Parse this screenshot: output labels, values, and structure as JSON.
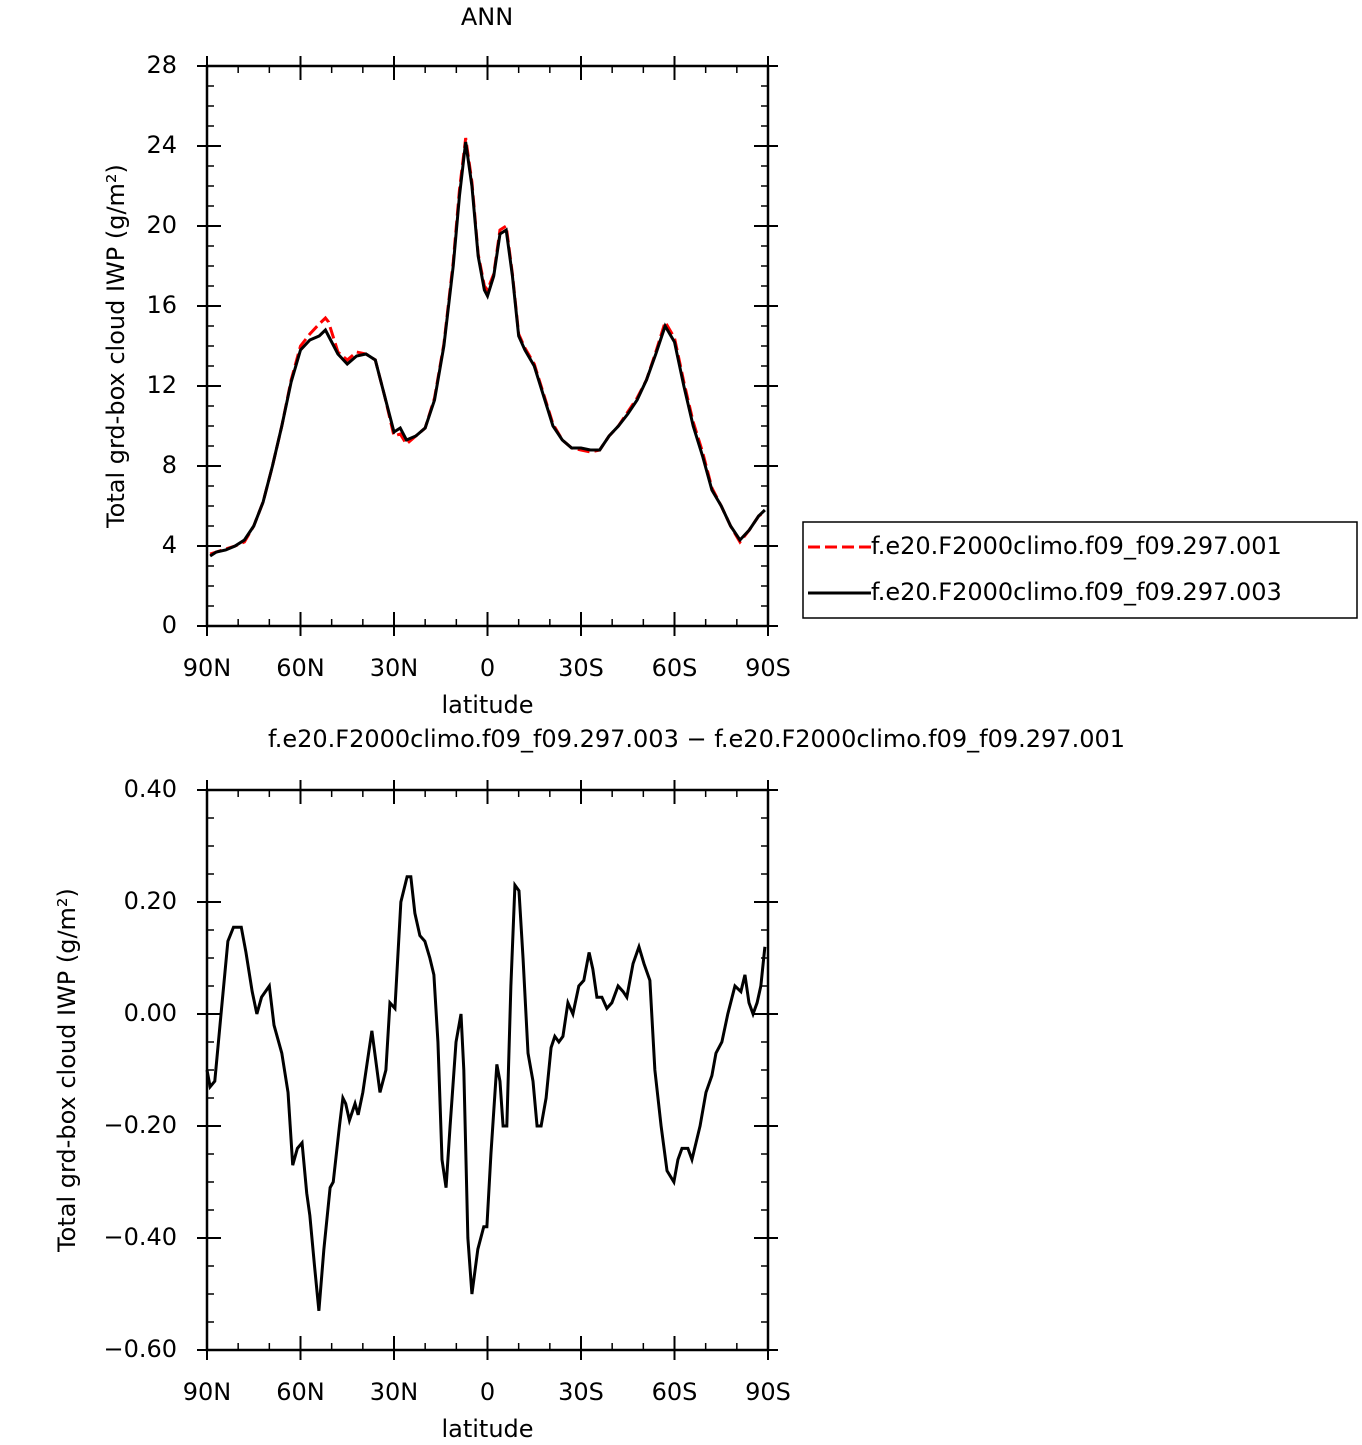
{
  "chart_data": [
    {
      "type": "line",
      "title": "ANN",
      "x_label": "latitude",
      "y_label": "Total grd-box cloud IWP (g/m²)",
      "x": [
        89,
        87,
        84,
        81,
        78,
        75,
        72,
        69,
        66,
        63,
        60,
        57,
        54,
        52,
        51,
        48,
        45,
        42,
        39,
        36,
        33,
        30,
        28,
        26,
        23,
        20,
        17,
        14,
        11,
        9,
        7,
        5,
        3,
        1,
        0,
        -2,
        -4,
        -6,
        -8,
        -10,
        -12,
        -15,
        -18,
        -21,
        -24,
        -27,
        -30,
        -33,
        -36,
        -39,
        -42,
        -45,
        -48,
        -51,
        -54,
        -57,
        -60,
        -63,
        -66,
        -69,
        -72,
        -75,
        -78,
        -81,
        -84,
        -87,
        -89
      ],
      "series": [
        {
          "name": "f.e20.F2000climo.f09_f09.297.001",
          "color": "#ff0000",
          "style": "dashed",
          "values": [
            3.6,
            3.7,
            3.85,
            4.0,
            4.2,
            5.0,
            6.2,
            8.0,
            10.0,
            12.3,
            14.0,
            14.6,
            15.1,
            15.4,
            15.2,
            13.7,
            13.3,
            13.7,
            13.6,
            13.3,
            11.5,
            9.5,
            9.6,
            9.1,
            9.5,
            9.9,
            11.4,
            14.1,
            18.2,
            21.8,
            24.4,
            22.2,
            18.6,
            17.0,
            16.8,
            17.6,
            19.8,
            20.0,
            17.6,
            14.6,
            13.9,
            13.1,
            11.6,
            10.1,
            9.3,
            8.9,
            8.8,
            8.7,
            8.8,
            9.5,
            10.0,
            10.7,
            11.4,
            12.3,
            13.7,
            15.2,
            14.4,
            12.2,
            10.2,
            8.7,
            6.9,
            6.0,
            5.0,
            4.2,
            4.8,
            5.5,
            5.7
          ]
        },
        {
          "name": "f.e20.F2000climo.f09_f09.297.003",
          "color": "#000000",
          "style": "solid",
          "values": [
            3.5,
            3.7,
            3.8,
            4.0,
            4.3,
            5.0,
            6.2,
            8.0,
            10.0,
            12.2,
            13.8,
            14.3,
            14.5,
            14.8,
            14.5,
            13.6,
            13.1,
            13.5,
            13.6,
            13.3,
            11.5,
            9.7,
            9.9,
            9.3,
            9.5,
            9.9,
            11.3,
            14.0,
            18.0,
            21.5,
            24.2,
            22.0,
            18.5,
            16.8,
            16.5,
            17.5,
            19.6,
            19.8,
            17.5,
            14.5,
            13.8,
            13.0,
            11.5,
            10.0,
            9.3,
            8.9,
            8.9,
            8.8,
            8.8,
            9.5,
            10.0,
            10.6,
            11.3,
            12.3,
            13.6,
            15.0,
            14.2,
            12.0,
            10.0,
            8.5,
            6.8,
            6.0,
            5.0,
            4.3,
            4.8,
            5.5,
            5.8
          ]
        }
      ],
      "xlim": [
        90,
        -90
      ],
      "xticks": [
        {
          "value": 90,
          "label": "90N"
        },
        {
          "value": 60,
          "label": "60N"
        },
        {
          "value": 30,
          "label": "30N"
        },
        0,
        {
          "value": -30,
          "label": "30S"
        },
        {
          "value": -60,
          "label": "60S"
        },
        {
          "value": -90,
          "label": "90S"
        }
      ],
      "ylim": [
        0,
        28
      ],
      "yticks": [
        0,
        4,
        8,
        12,
        16,
        20,
        24,
        28
      ],
      "legend": "right"
    },
    {
      "type": "line",
      "title": "f.e20.F2000climo.f09_f09.297.003 − f.e20.F2000climo.f09_f09.297.001",
      "x_label": "latitude",
      "y_label": "Total grd-box cloud IWP (g/m²)",
      "x": [
        90,
        89,
        87.5,
        85.5,
        83.3,
        81.5,
        79,
        77.5,
        75.5,
        74,
        72.5,
        70,
        68.5,
        66,
        64,
        62.5,
        61,
        59.5,
        58,
        57,
        55.5,
        54.1,
        52.5,
        50.5,
        49.5,
        47.5,
        46.4,
        45.5,
        44.3,
        42.5,
        41.5,
        40,
        37.1,
        34.5,
        32.6,
        31.3,
        29.7,
        27.8,
        25.8,
        24.6,
        23.3,
        21.7,
        20.1,
        18.5,
        17.2,
        15.9,
        14.6,
        13.3,
        12.0,
        10.1,
        8.5,
        7.6,
        6.3,
        5.0,
        3.1,
        1.2,
        0.2,
        -1.1,
        -3.0,
        -4.0,
        -5.0,
        -6.2,
        -7.5,
        -8.8,
        -10.1,
        -11.4,
        -13.0,
        -14.6,
        -15.9,
        -17.2,
        -18.8,
        -20.4,
        -21.6,
        -22.9,
        -24.2,
        -25.8,
        -27.4,
        -29.3,
        -30.9,
        -32.6,
        -33.8,
        -35.1,
        -36.7,
        -38.3,
        -39.9,
        -41.9,
        -43.5,
        -44.7,
        -46.7,
        -48.6,
        -50.2,
        -52.1,
        -53.7,
        -55.7,
        -57.6,
        -59.8,
        -61.1,
        -62.4,
        -64.3,
        -65.6,
        -68.2,
        -70.1,
        -72.0,
        -73.3,
        -75.2,
        -77.1,
        -79.4,
        -81.3,
        -82.6,
        -83.9,
        -85.2,
        -86.5,
        -87.7,
        -89.0
      ],
      "series": [
        {
          "color": "#000000",
          "style": "solid",
          "values": [
            -0.1,
            -0.13,
            -0.12,
            0.0,
            0.13,
            0.155,
            0.155,
            0.11,
            0.04,
            0.0,
            0.03,
            0.05,
            -0.02,
            -0.07,
            -0.14,
            -0.27,
            -0.24,
            -0.23,
            -0.32,
            -0.36,
            -0.45,
            -0.53,
            -0.42,
            -0.31,
            -0.3,
            -0.2,
            -0.15,
            -0.16,
            -0.19,
            -0.16,
            -0.18,
            -0.14,
            -0.03,
            -0.14,
            -0.1,
            0.02,
            0.01,
            0.2,
            0.245,
            0.245,
            0.18,
            0.14,
            0.13,
            0.1,
            0.07,
            -0.05,
            -0.26,
            -0.31,
            -0.2,
            -0.05,
            0.0,
            -0.1,
            -0.4,
            -0.5,
            -0.42,
            -0.38,
            -0.38,
            -0.25,
            -0.09,
            -0.12,
            -0.2,
            -0.2,
            0.05,
            0.23,
            0.22,
            0.1,
            -0.07,
            -0.12,
            -0.2,
            -0.2,
            -0.15,
            -0.06,
            -0.04,
            -0.05,
            -0.04,
            0.02,
            0.0,
            0.05,
            0.06,
            0.11,
            0.08,
            0.03,
            0.03,
            0.01,
            0.02,
            0.05,
            0.04,
            0.03,
            0.09,
            0.12,
            0.09,
            0.06,
            -0.1,
            -0.2,
            -0.28,
            -0.3,
            -0.26,
            -0.24,
            -0.24,
            -0.26,
            -0.2,
            -0.14,
            -0.11,
            -0.07,
            -0.05,
            0.0,
            0.05,
            0.04,
            0.07,
            0.02,
            0.0,
            0.02,
            0.05,
            0.12
          ]
        }
      ],
      "xlim": [
        90,
        -90
      ],
      "xticks": [
        {
          "value": 90,
          "label": "90N"
        },
        {
          "value": 60,
          "label": "60N"
        },
        {
          "value": 30,
          "label": "30N"
        },
        0,
        {
          "value": -30,
          "label": "30S"
        },
        {
          "value": -60,
          "label": "60S"
        },
        {
          "value": -90,
          "label": "90S"
        }
      ],
      "ylim": [
        -0.6,
        0.4
      ],
      "yticks": [
        {
          "value": -0.6,
          "label": "−0.60"
        },
        {
          "value": -0.4,
          "label": "−0.40"
        },
        {
          "value": -0.2,
          "label": "−0.20"
        },
        {
          "value": 0,
          "label": "0.00"
        },
        {
          "value": 0.2,
          "label": "0.20"
        },
        {
          "value": 0.4,
          "label": "0.40"
        }
      ]
    }
  ]
}
